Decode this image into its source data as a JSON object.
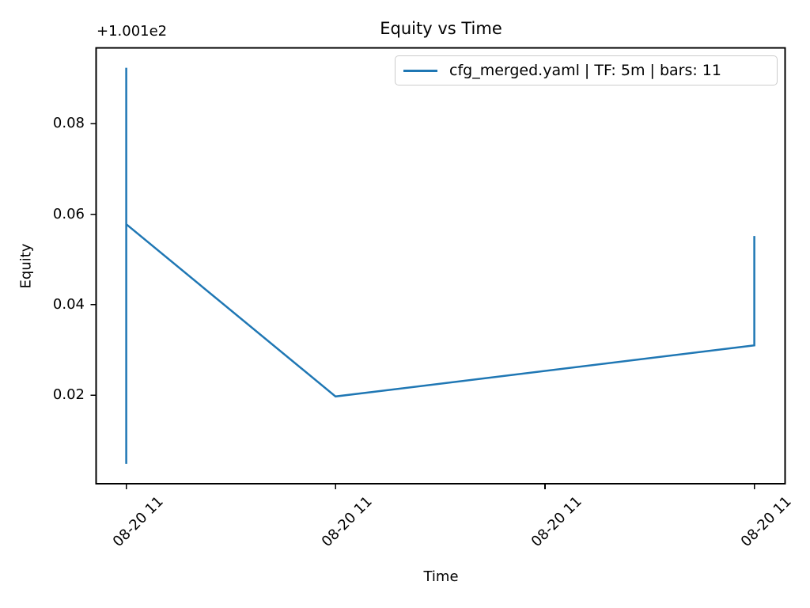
{
  "figure": {
    "background_color": "#ffffff",
    "text_color": "#000000",
    "spine_color": "#000000"
  },
  "chart_data": {
    "type": "line",
    "title": "Equity vs Time",
    "xlabel": "Time",
    "ylabel": "Equity",
    "y_axis_offset_text": "+1.001e2",
    "y_axis_offset_value": 100.1,
    "grid": false,
    "legend": {
      "position": "upper right",
      "entries": [
        {
          "label": "cfg_merged.yaml | TF: 5m | bars: 11",
          "color": "#1f77b4"
        }
      ]
    },
    "y_ticks": [
      {
        "value": 0.02,
        "label": "0.02"
      },
      {
        "value": 0.04,
        "label": "0.04"
      },
      {
        "value": 0.06,
        "label": "0.06"
      },
      {
        "value": 0.08,
        "label": "0.08"
      }
    ],
    "ylim": [
      0.0004,
      0.0968
    ],
    "x_ticks": [
      {
        "frac": 0.0,
        "label": "08-20 11"
      },
      {
        "frac": 0.3333,
        "label": "08-20 11"
      },
      {
        "frac": 0.6667,
        "label": "08-20 11"
      },
      {
        "frac": 1.0,
        "label": "08-20 11"
      }
    ],
    "xlim_frac": [
      -0.048,
      1.049
    ],
    "x_tick_rotation_deg": 45,
    "series": [
      {
        "name": "cfg_merged.yaml | TF: 5m | bars: 11",
        "color": "#1f77b4",
        "line_width": 2.5,
        "points": [
          {
            "x_frac": 0.0,
            "y": 0.0048
          },
          {
            "x_frac": 0.0,
            "y": 0.0924
          },
          {
            "x_frac": 0.0,
            "y": 0.0578
          },
          {
            "x_frac": 0.3333,
            "y": 0.0197
          },
          {
            "x_frac": 1.0,
            "y": 0.031
          },
          {
            "x_frac": 1.0,
            "y": 0.0552
          }
        ]
      }
    ]
  }
}
